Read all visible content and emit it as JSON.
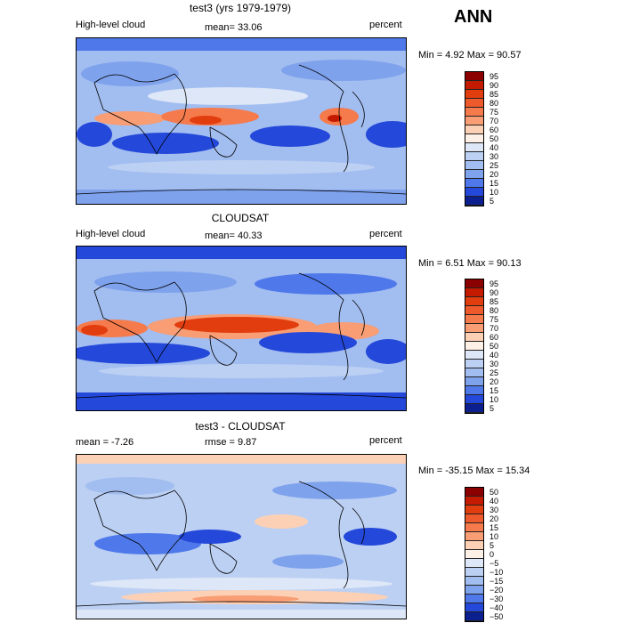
{
  "season": "ANN",
  "panels": [
    {
      "title": "test3 (yrs 1979-1979)",
      "left_label": "High-level cloud",
      "center_label": "mean=  33.06",
      "unit": "percent",
      "minmax": "Min =   4.92 Max =  90.57",
      "levels": [
        "95",
        "90",
        "85",
        "80",
        "75",
        "70",
        "60",
        "50",
        "40",
        "30",
        "25",
        "20",
        "15",
        "10",
        "5"
      ],
      "colors": [
        "#8b0000",
        "#c41a00",
        "#e23d0e",
        "#ef5a2c",
        "#f57a4c",
        "#f89d74",
        "#fcd0b4",
        "#fdf0e6",
        "#dde7f7",
        "#bcd0f3",
        "#a2bdf0",
        "#7fa2ed",
        "#4f79ea",
        "#2448d9",
        "#0c1f8e"
      ]
    },
    {
      "title": "CLOUDSAT",
      "left_label": "High-level cloud",
      "center_label": "mean=  40.33",
      "unit": "percent",
      "minmax": "Min =   6.51 Max =  90.13",
      "levels": [
        "95",
        "90",
        "85",
        "80",
        "75",
        "70",
        "60",
        "50",
        "40",
        "30",
        "25",
        "20",
        "15",
        "10",
        "5"
      ],
      "colors": [
        "#8b0000",
        "#c41a00",
        "#e23d0e",
        "#ef5a2c",
        "#f57a4c",
        "#f89d74",
        "#fcd0b4",
        "#fdf0e6",
        "#dde7f7",
        "#bcd0f3",
        "#a2bdf0",
        "#7fa2ed",
        "#4f79ea",
        "#2448d9",
        "#0c1f8e"
      ]
    },
    {
      "title": "test3 - CLOUDSAT",
      "left_label": "mean =   -7.26",
      "center_label": "rmse =    9.87",
      "unit": "percent",
      "minmax": "Min = -35.15 Max =  15.34",
      "levels": [
        "50",
        "40",
        "30",
        "20",
        "15",
        "10",
        "5",
        "0",
        "−5",
        "−10",
        "−15",
        "−20",
        "−30",
        "−40",
        "−50"
      ],
      "colors": [
        "#8b0000",
        "#c41a00",
        "#e23d0e",
        "#ef5a2c",
        "#f57a4c",
        "#f89d74",
        "#fcd0b4",
        "#fdf0e6",
        "#dde7f7",
        "#bcd0f3",
        "#a2bdf0",
        "#7fa2ed",
        "#4f79ea",
        "#2448d9",
        "#0c1f8e"
      ]
    }
  ],
  "chart_data": [
    {
      "type": "heatmap",
      "title": "test3 (yrs 1979-1979)",
      "variable": "High-level cloud",
      "unit": "percent",
      "mean": 33.06,
      "min": 4.92,
      "max": 90.57,
      "contour_levels": [
        5,
        10,
        15,
        20,
        25,
        30,
        40,
        50,
        60,
        70,
        75,
        80,
        85,
        90,
        95
      ]
    },
    {
      "type": "heatmap",
      "title": "CLOUDSAT",
      "variable": "High-level cloud",
      "unit": "percent",
      "mean": 40.33,
      "min": 6.51,
      "max": 90.13,
      "contour_levels": [
        5,
        10,
        15,
        20,
        25,
        30,
        40,
        50,
        60,
        70,
        75,
        80,
        85,
        90,
        95
      ]
    },
    {
      "type": "heatmap",
      "title": "test3 - CLOUDSAT",
      "unit": "percent",
      "mean": -7.26,
      "rmse": 9.87,
      "min": -35.15,
      "max": 15.34,
      "contour_levels": [
        -50,
        -40,
        -30,
        -20,
        -15,
        -10,
        -5,
        0,
        5,
        10,
        15,
        20,
        30,
        40,
        50
      ]
    }
  ]
}
